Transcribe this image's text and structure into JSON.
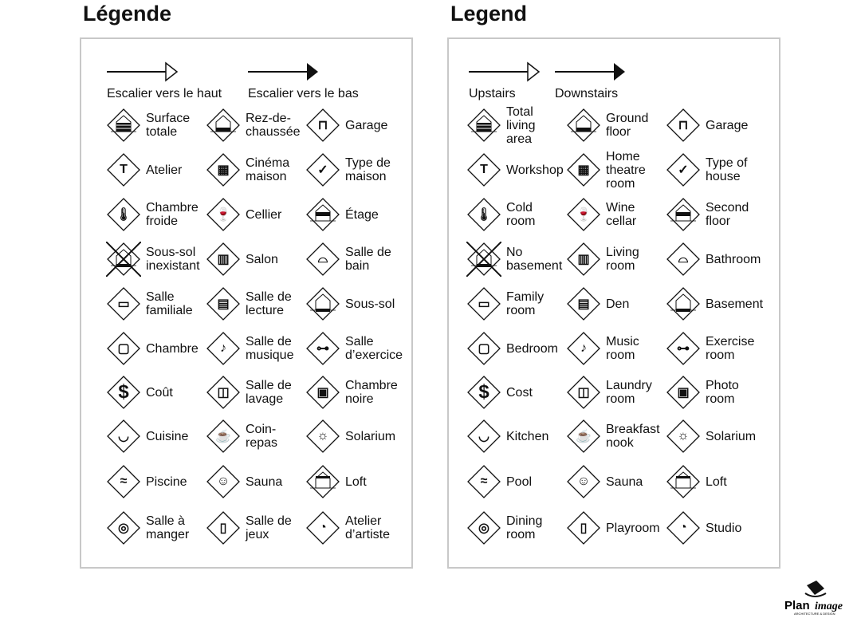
{
  "fr": {
    "title": "Légende",
    "up": "Escalier vers le haut",
    "down": "Escalier vers le bas",
    "items": [
      [
        "total-area",
        "Surface\ntotale"
      ],
      [
        "ground-floor",
        "Rez-de-\nchaussée"
      ],
      [
        "garage",
        "Garage"
      ],
      [
        "hammer",
        "Atelier"
      ],
      [
        "home-theatre",
        "Cinéma\nmaison"
      ],
      [
        "house-check",
        "Type de\nmaison"
      ],
      [
        "thermometer",
        "Chambre\nfroide"
      ],
      [
        "wine",
        "Cellier"
      ],
      [
        "second-floor",
        "Étage"
      ],
      [
        "no-basement",
        "Sous-sol\ninexistant"
      ],
      [
        "sofa",
        "Salon"
      ],
      [
        "toilet",
        "Salle de\nbain"
      ],
      [
        "tv",
        "Salle\nfamiliale"
      ],
      [
        "book",
        "Salle de\nlecture"
      ],
      [
        "basement",
        "Sous-sol"
      ],
      [
        "bed",
        "Chambre"
      ],
      [
        "music-note",
        "Salle de\nmusique"
      ],
      [
        "weights",
        "Salle\nd’exercice"
      ],
      [
        "dollar",
        "Coût"
      ],
      [
        "washer",
        "Salle de\nlavage"
      ],
      [
        "camera",
        "Chambre\nnoire"
      ],
      [
        "pot",
        "Cuisine"
      ],
      [
        "cup",
        "Coin-\nrepas"
      ],
      [
        "sun",
        "Solarium"
      ],
      [
        "swimmer",
        "Piscine"
      ],
      [
        "sauna",
        "Sauna"
      ],
      [
        "loft",
        "Loft"
      ],
      [
        "plate",
        "Salle à\nmanger"
      ],
      [
        "door",
        "Salle de\njeux"
      ],
      [
        "palette",
        "Atelier\nd’artiste"
      ]
    ]
  },
  "en": {
    "title": "Legend",
    "up": "Upstairs",
    "down": "Downstairs",
    "items": [
      [
        "total-area",
        "Total\nliving\narea"
      ],
      [
        "ground-floor",
        "Ground\nfloor"
      ],
      [
        "garage",
        "Garage"
      ],
      [
        "hammer",
        "Workshop"
      ],
      [
        "home-theatre",
        "Home\ntheatre\nroom"
      ],
      [
        "house-check",
        "Type of\nhouse"
      ],
      [
        "thermometer",
        "Cold\nroom"
      ],
      [
        "wine",
        "Wine\ncellar"
      ],
      [
        "second-floor",
        "Second\nfloor"
      ],
      [
        "no-basement",
        "No\nbasement"
      ],
      [
        "sofa",
        "Living\nroom"
      ],
      [
        "toilet",
        "Bathroom"
      ],
      [
        "tv",
        "Family\nroom"
      ],
      [
        "book",
        "Den"
      ],
      [
        "basement",
        "Basement"
      ],
      [
        "bed",
        "Bedroom"
      ],
      [
        "music-note",
        "Music\nroom"
      ],
      [
        "weights",
        "Exercise\nroom"
      ],
      [
        "dollar",
        "Cost"
      ],
      [
        "washer",
        "Laundry\nroom"
      ],
      [
        "camera",
        "Photo\nroom"
      ],
      [
        "pot",
        "Kitchen"
      ],
      [
        "cup",
        "Breakfast\nnook"
      ],
      [
        "sun",
        "Solarium"
      ],
      [
        "swimmer",
        "Pool"
      ],
      [
        "sauna",
        "Sauna"
      ],
      [
        "loft",
        "Loft"
      ],
      [
        "plate",
        "Dining\nroom"
      ],
      [
        "door",
        "Playroom"
      ],
      [
        "palette",
        "Studio"
      ]
    ]
  },
  "logo": {
    "brand": "PlanImage",
    "tagline": "ARCHITECTURE & DESIGN"
  }
}
